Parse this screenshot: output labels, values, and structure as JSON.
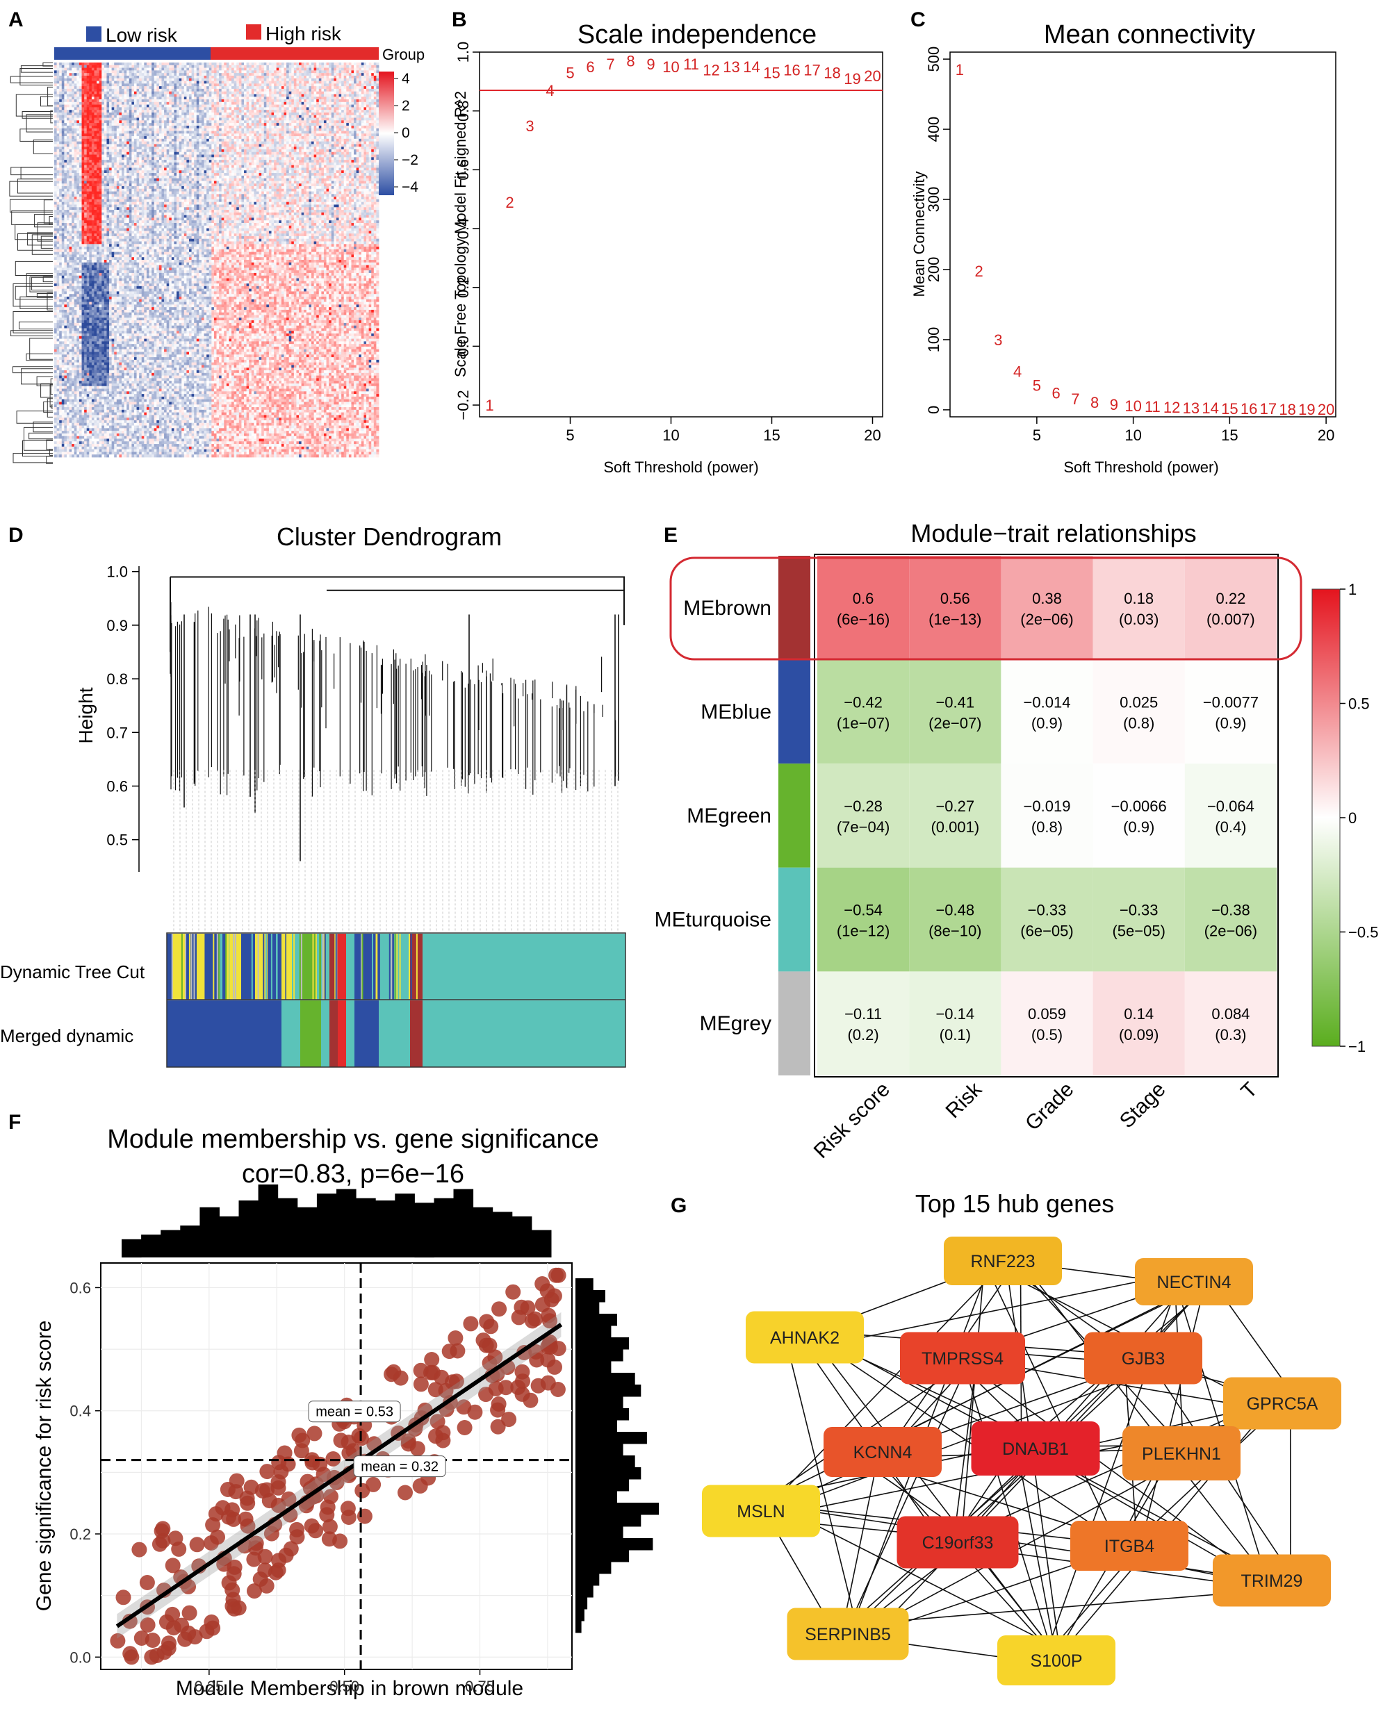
{
  "panel_letters": {
    "A": "A",
    "B": "B",
    "C": "C",
    "D": "D",
    "E": "E",
    "F": "F",
    "G": "G"
  },
  "colors": {
    "red": "#e32b2b",
    "blue": "#2d4ea3",
    "turquoise": "#5bc3b9",
    "brown": "#a33232",
    "green": "#66b32d",
    "grey": "#bdbdbd",
    "yellow": "#f0e23a",
    "point": "#a93a2a"
  },
  "chart_data": [
    {
      "id": "A",
      "type": "heatmap",
      "legend": {
        "low": "Low risk",
        "high": "High risk",
        "group_label": "Group"
      },
      "color_scale": {
        "ticks": [
          "4",
          "2",
          "0",
          "−2",
          "−4"
        ],
        "range": [
          -4,
          4
        ]
      }
    },
    {
      "id": "B",
      "type": "scatter",
      "title": "Scale independence",
      "xlabel": "Soft Threshold (power)",
      "ylabel": "Scale Free Topology Model Fit,signed R^2",
      "xlim": [
        0.5,
        20.5
      ],
      "ylim": [
        -0.24,
        1.0
      ],
      "xticks": [
        5,
        10,
        15,
        20
      ],
      "yticks": [
        {
          "v": -0.2,
          "l": "−0.2"
        },
        {
          "v": 0.0,
          "l": "0.0"
        },
        {
          "v": 0.2,
          "l": "0.2"
        },
        {
          "v": 0.4,
          "l": "0.4"
        },
        {
          "v": 0.6,
          "l": "0.6"
        },
        {
          "v": 0.8,
          "l": "0.8"
        },
        {
          "v": 1.0,
          "l": "1.0"
        }
      ],
      "threshold": 0.87,
      "labels": [
        "1",
        "2",
        "3",
        "4",
        "5",
        "6",
        "7",
        "8",
        "9",
        "10",
        "11",
        "12",
        "13",
        "14",
        "15",
        "16",
        "17",
        "18",
        "19",
        "20"
      ],
      "x": [
        1,
        2,
        3,
        4,
        5,
        6,
        7,
        8,
        9,
        10,
        11,
        12,
        13,
        14,
        15,
        16,
        17,
        18,
        19,
        20
      ],
      "y": [
        -0.2,
        0.49,
        0.75,
        0.87,
        0.93,
        0.95,
        0.96,
        0.97,
        0.96,
        0.95,
        0.96,
        0.94,
        0.95,
        0.95,
        0.93,
        0.94,
        0.94,
        0.93,
        0.91,
        0.92
      ]
    },
    {
      "id": "C",
      "type": "scatter",
      "title": "Mean connectivity",
      "xlabel": "Soft Threshold (power)",
      "ylabel": "Mean Connectivity",
      "xlim": [
        0.5,
        20.5
      ],
      "ylim": [
        -10,
        510
      ],
      "xticks": [
        5,
        10,
        15,
        20
      ],
      "yticks": [
        {
          "v": 0,
          "l": "0"
        },
        {
          "v": 100,
          "l": "100"
        },
        {
          "v": 200,
          "l": "200"
        },
        {
          "v": 300,
          "l": "300"
        },
        {
          "v": 400,
          "l": "400"
        },
        {
          "v": 500,
          "l": "500"
        }
      ],
      "labels": [
        "1",
        "2",
        "3",
        "4",
        "5",
        "6",
        "7",
        "8",
        "9",
        "10",
        "11",
        "12",
        "13",
        "14",
        "15",
        "16",
        "17",
        "18",
        "19",
        "20"
      ],
      "x": [
        1,
        2,
        3,
        4,
        5,
        6,
        7,
        8,
        9,
        10,
        11,
        12,
        13,
        14,
        15,
        16,
        17,
        18,
        19,
        20
      ],
      "y": [
        485,
        198,
        100,
        55,
        35,
        24,
        16,
        11,
        8,
        6,
        5,
        4,
        3,
        3,
        2,
        2,
        2,
        1,
        1,
        1
      ]
    },
    {
      "id": "D",
      "type": "dendrogram",
      "title": "Cluster Dendrogram",
      "ylabel": "Height",
      "yticks": [
        "1.0",
        "0.9",
        "0.8",
        "0.7",
        "0.6",
        "0.5"
      ],
      "ytick_values": [
        1.0,
        0.9,
        0.8,
        0.7,
        0.6,
        0.5
      ],
      "ylim": [
        0.44,
        1.01
      ],
      "rows": [
        "Dynamic Tree Cut",
        "Merged dynamic"
      ]
    },
    {
      "id": "E",
      "type": "heatmap",
      "title": "Module−trait relationships",
      "columns": [
        "Risk score",
        "Risk",
        "Grade",
        "Stage",
        "T"
      ],
      "rows": [
        {
          "name": "MEbrown",
          "color": "#a33232",
          "r": [
            0.6,
            0.56,
            0.38,
            0.18,
            0.22
          ],
          "p": [
            "(6e−16)",
            "(1e−13)",
            "(2e−06)",
            "(0.03)",
            "(0.007)"
          ],
          "t": [
            "0.6",
            "0.56",
            "0.38",
            "0.18",
            "0.22"
          ]
        },
        {
          "name": "MEblue",
          "color": "#2d4ea3",
          "r": [
            -0.42,
            -0.41,
            -0.014,
            0.025,
            -0.0077
          ],
          "p": [
            "(1e−07)",
            "(2e−07)",
            "(0.9)",
            "(0.8)",
            "(0.9)"
          ],
          "t": [
            "−0.42",
            "−0.41",
            "−0.014",
            "0.025",
            "−0.0077"
          ]
        },
        {
          "name": "MEgreen",
          "color": "#66b32d",
          "r": [
            -0.28,
            -0.27,
            -0.019,
            -0.0066,
            -0.064
          ],
          "p": [
            "(7e−04)",
            "(0.001)",
            "(0.8)",
            "(0.9)",
            "(0.4)"
          ],
          "t": [
            "−0.28",
            "−0.27",
            "−0.019",
            "−0.0066",
            "−0.064"
          ]
        },
        {
          "name": "MEturquoise",
          "color": "#5bc3b9",
          "r": [
            -0.54,
            -0.48,
            -0.33,
            -0.33,
            -0.38
          ],
          "p": [
            "(1e−12)",
            "(8e−10)",
            "(6e−05)",
            "(5e−05)",
            "(2e−06)"
          ],
          "t": [
            "−0.54",
            "−0.48",
            "−0.33",
            "−0.33",
            "−0.38"
          ]
        },
        {
          "name": "MEgrey",
          "color": "#bdbdbd",
          "r": [
            -0.11,
            -0.14,
            0.059,
            0.14,
            0.084
          ],
          "p": [
            "(0.2)",
            "(0.1)",
            "(0.5)",
            "(0.09)",
            "(0.3)"
          ],
          "t": [
            "−0.11",
            "−0.14",
            "0.059",
            "0.14",
            "0.084"
          ]
        }
      ],
      "legend_ticks": [
        {
          "v": 1,
          "l": "1"
        },
        {
          "v": 0.5,
          "l": "0.5"
        },
        {
          "v": 0,
          "l": "0"
        },
        {
          "v": -0.5,
          "l": "−0.5"
        },
        {
          "v": -1,
          "l": "−1"
        }
      ]
    },
    {
      "id": "F",
      "type": "scatter",
      "title": "Module membership vs. gene significance",
      "subtitle": "cor=0.83, p=6e−16",
      "xlabel": "Module Membership in brown module",
      "ylabel": "Gene significance for risk score",
      "xlim": [
        0.05,
        0.92
      ],
      "ylim": [
        -0.02,
        0.64
      ],
      "xticks": [
        {
          "v": 0.25,
          "l": "0.25"
        },
        {
          "v": 0.5,
          "l": "0.50"
        },
        {
          "v": 0.75,
          "l": "0.75"
        }
      ],
      "yticks": [
        {
          "v": 0.0,
          "l": "0.0"
        },
        {
          "v": 0.2,
          "l": "0.2"
        },
        {
          "v": 0.4,
          "l": "0.4"
        },
        {
          "v": 0.6,
          "l": "0.6"
        }
      ],
      "mean_x": 0.53,
      "mean_y": 0.32,
      "mean_x_label": "mean = 0.53",
      "mean_y_label": "mean = 0.32",
      "fit": {
        "x0": 0.08,
        "y0": 0.05,
        "x1": 0.9,
        "y1": 0.54
      },
      "top_hist": [
        8,
        10,
        12,
        14,
        22,
        18,
        25,
        32,
        26,
        22,
        28,
        30,
        26,
        25,
        28,
        24,
        26,
        30,
        22,
        20,
        18,
        12
      ],
      "right_hist": [
        6,
        10,
        8,
        14,
        12,
        18,
        16,
        12,
        20,
        22,
        16,
        18,
        14,
        24,
        16,
        20,
        22,
        18,
        14,
        28,
        22,
        16,
        26,
        18,
        12,
        8,
        6,
        4,
        3,
        2
      ]
    },
    {
      "id": "G",
      "type": "network",
      "title": "Top 15 hub genes",
      "nodes": [
        {
          "id": "RNF223",
          "label": "RNF223",
          "color": "#f2b624"
        },
        {
          "id": "NECTIN4",
          "label": "NECTIN4",
          "color": "#f2a22c"
        },
        {
          "id": "AHNAK2",
          "label": "AHNAK2",
          "color": "#f7d22b"
        },
        {
          "id": "TMPRSS4",
          "label": "TMPRSS4",
          "color": "#e8432a"
        },
        {
          "id": "GJB3",
          "label": "GJB3",
          "color": "#ea6226"
        },
        {
          "id": "GPRC5A",
          "label": "GPRC5A",
          "color": "#f2a22c"
        },
        {
          "id": "KCNN4",
          "label": "KCNN4",
          "color": "#e8542a"
        },
        {
          "id": "DNAJB1",
          "label": "DNAJB1",
          "color": "#e4222a"
        },
        {
          "id": "PLEKHN1",
          "label": "PLEKHN1",
          "color": "#ee872a"
        },
        {
          "id": "MSLN",
          "label": "MSLN",
          "color": "#f7d82a"
        },
        {
          "id": "C19orf33",
          "label": "C19orf33",
          "color": "#e33329"
        },
        {
          "id": "ITGB4",
          "label": "ITGB4",
          "color": "#ee7628"
        },
        {
          "id": "TRIM29",
          "label": "TRIM29",
          "color": "#f2982a"
        },
        {
          "id": "SERPINB5",
          "label": "SERPINB5",
          "color": "#f5c22b"
        },
        {
          "id": "S100P",
          "label": "S100P",
          "color": "#f7d42a"
        }
      ]
    }
  ]
}
